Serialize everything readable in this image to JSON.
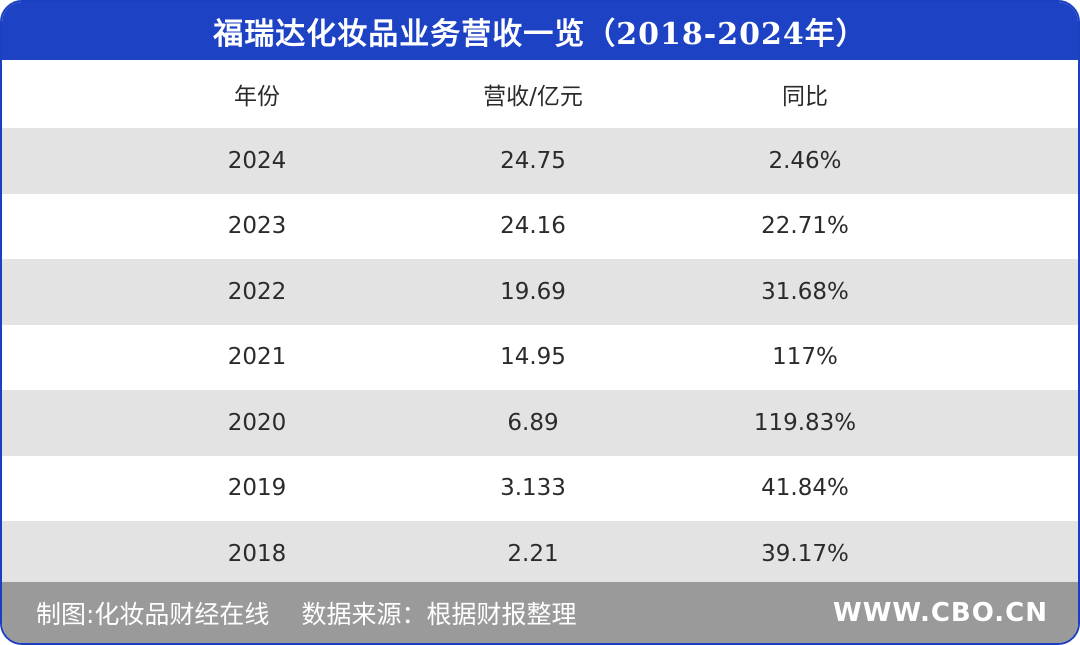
{
  "chart_data": {
    "type": "table",
    "title": "福瑞达化妆品业务营收一览（2018-2024年）",
    "columns": [
      "年份",
      "营收/亿元",
      "同比"
    ],
    "rows": [
      [
        "2024",
        "24.75",
        "2.46%"
      ],
      [
        "2023",
        "24.16",
        "22.71%"
      ],
      [
        "2022",
        "19.69",
        "31.68%"
      ],
      [
        "2021",
        "14.95",
        "117%"
      ],
      [
        "2020",
        "6.89",
        "119.83%"
      ],
      [
        "2019",
        "3.133",
        "41.84%"
      ],
      [
        "2018",
        "2.21",
        "39.17%"
      ]
    ]
  },
  "footer": {
    "maker": "制图:化妆品财经在线",
    "source": "数据来源：根据财报整理",
    "site": "WWW.CBO.CN"
  },
  "colors": {
    "title_bg": "#1d42c4",
    "border": "#1a3fbf",
    "row_shade": "#e3e3e3",
    "footer_bg": "#9a9a9a"
  }
}
